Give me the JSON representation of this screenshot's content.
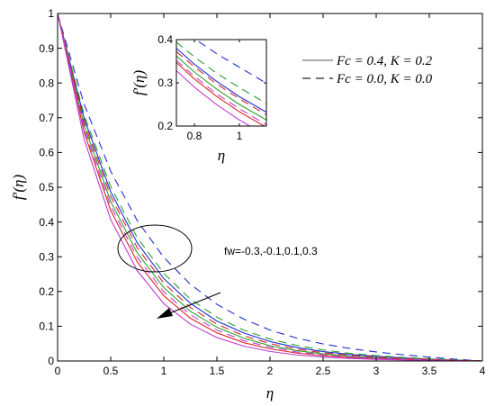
{
  "chart_data": [
    {
      "type": "line",
      "xlabel": "η",
      "ylabel": "f′(η)",
      "xlim": [
        0,
        4
      ],
      "ylim": [
        0,
        1
      ],
      "xticks": [
        "0",
        "0.5",
        "1",
        "1.5",
        "2",
        "2.5",
        "3",
        "3.5",
        "4"
      ],
      "yticks": [
        "0",
        "0.1",
        "0.2",
        "0.3",
        "0.4",
        "0.5",
        "0.6",
        "0.7",
        "0.8",
        "0.9",
        "1"
      ],
      "x": [
        0,
        0.25,
        0.5,
        0.75,
        1,
        1.25,
        1.5,
        1.75,
        2,
        2.25,
        2.5,
        2.75,
        3,
        3.25,
        3.5,
        3.75,
        4
      ],
      "legend": {
        "position": "top-right",
        "entries": [
          {
            "label": "Fc = 0.4, K = 0.2",
            "style": "solid"
          },
          {
            "label": "Fc = 0.0, K = 0.0",
            "style": "dashed"
          }
        ]
      },
      "annotation": {
        "text": "fw=-0.3,-0.1,0.1,0.3",
        "arrow": "points toward decreasing f′(η) as fw increases"
      },
      "series": [
        {
          "color": "#1f2fd0",
          "style": "solid",
          "values": [
            1,
            0.698,
            0.487,
            0.34,
            0.237,
            0.166,
            0.115,
            0.081,
            0.056,
            0.039,
            0.027,
            0.019,
            0.0135,
            0.0089,
            0.0055,
            0.0025,
            0
          ]
        },
        {
          "color": "#2ca02c",
          "style": "solid",
          "values": [
            1,
            0.678,
            0.459,
            0.311,
            0.211,
            0.143,
            0.097,
            0.066,
            0.044,
            0.03,
            0.0205,
            0.0139,
            0.0094,
            0.0062,
            0.0038,
            0.0017,
            0
          ]
        },
        {
          "color": "#d62728",
          "style": "solid",
          "values": [
            1,
            0.658,
            0.433,
            0.285,
            0.188,
            0.123,
            0.081,
            0.053,
            0.035,
            0.023,
            0.0152,
            0.01,
            0.0066,
            0.0043,
            0.0026,
            0.0012,
            0
          ]
        },
        {
          "color": "#c03cd0",
          "style": "solid",
          "values": [
            1,
            0.638,
            0.407,
            0.26,
            0.165,
            0.106,
            0.0675,
            0.043,
            0.0275,
            0.0175,
            0.0112,
            0.0071,
            0.0046,
            0.0029,
            0.0017,
            0.0008,
            0
          ]
        },
        {
          "color": "#1f2fd0",
          "style": "dashed",
          "values": [
            1,
            0.739,
            0.546,
            0.404,
            0.298,
            0.221,
            0.163,
            0.121,
            0.089,
            0.066,
            0.049,
            0.036,
            0.026,
            0.018,
            0.011,
            0.005,
            0
          ]
        },
        {
          "color": "#2ca02c",
          "style": "dashed",
          "values": [
            1,
            0.708,
            0.502,
            0.355,
            0.252,
            0.178,
            0.126,
            0.089,
            0.063,
            0.045,
            0.032,
            0.022,
            0.0155,
            0.0103,
            0.0063,
            0.0029,
            0
          ]
        },
        {
          "color": "#d62728",
          "style": "dashed",
          "values": [
            1,
            0.688,
            0.474,
            0.326,
            0.224,
            0.154,
            0.106,
            0.073,
            0.05,
            0.0345,
            0.0237,
            0.0162,
            0.0109,
            0.0071,
            0.0044,
            0.002,
            0
          ]
        },
        {
          "color": "#c03cd0",
          "style": "dashed",
          "values": [
            1,
            0.668,
            0.446,
            0.298,
            0.199,
            0.133,
            0.089,
            0.059,
            0.04,
            0.026,
            0.0177,
            0.0117,
            0.0078,
            0.0051,
            0.0031,
            0.0014,
            0
          ]
        }
      ]
    },
    {
      "type": "line",
      "role": "inset",
      "xlabel": "η",
      "ylabel": "f′(η)",
      "xlim": [
        0.72,
        1.12
      ],
      "ylim": [
        0.2,
        0.4
      ],
      "xticks": [
        "0.8",
        "1"
      ],
      "yticks": [
        "0.2",
        "0.3",
        "0.4"
      ],
      "x": [
        0.72,
        0.8,
        0.9,
        1.0,
        1.12
      ],
      "series": [
        {
          "color": "#1f2fd0",
          "style": "solid",
          "values": [
            0.38,
            0.343,
            0.303,
            0.268,
            0.232
          ]
        },
        {
          "color": "#2ca02c",
          "style": "solid",
          "values": [
            0.362,
            0.325,
            0.285,
            0.25,
            0.214
          ]
        },
        {
          "color": "#d62728",
          "style": "solid",
          "values": [
            0.347,
            0.309,
            0.268,
            0.233,
            0.197
          ]
        },
        {
          "color": "#c03cd0",
          "style": "solid",
          "values": [
            0.328,
            0.29,
            0.249,
            0.214,
            0.178
          ]
        },
        {
          "color": "#1f2fd0",
          "style": "dashed",
          "values": [
            0.43,
            0.402,
            0.367,
            0.336,
            0.299
          ]
        },
        {
          "color": "#2ca02c",
          "style": "dashed",
          "values": [
            0.394,
            0.36,
            0.322,
            0.289,
            0.252
          ]
        },
        {
          "color": "#d62728",
          "style": "dashed",
          "values": [
            0.372,
            0.337,
            0.297,
            0.263,
            0.226
          ]
        },
        {
          "color": "#c03cd0",
          "style": "dashed",
          "values": [
            0.352,
            0.315,
            0.274,
            0.24,
            0.203
          ]
        }
      ]
    }
  ]
}
